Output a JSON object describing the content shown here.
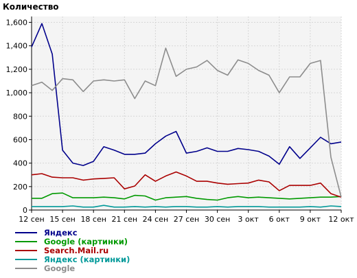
{
  "chart_data": {
    "type": "line",
    "title": "Количество",
    "xlabel": "",
    "ylabel": "",
    "ylim": [
      0,
      1650
    ],
    "yticks": [
      0,
      200,
      400,
      600,
      800,
      1000,
      1200,
      1400,
      1600
    ],
    "ytick_labels": [
      "0",
      "200",
      "400",
      "600",
      "800",
      "1,000",
      "1,200",
      "1,400",
      "1,600"
    ],
    "x": [
      "12 сен",
      "13 сен",
      "14 сен",
      "15 сен",
      "16 сен",
      "17 сен",
      "18 сен",
      "19 сен",
      "20 сен",
      "21 сен",
      "22 сен",
      "23 сен",
      "24 сен",
      "25 сен",
      "26 сен",
      "27 сен",
      "28 сен",
      "29 сен",
      "30 сен",
      "1 окт",
      "2 окт",
      "3 окт",
      "4 окт",
      "5 окт",
      "6 окт",
      "7 окт",
      "8 окт",
      "9 окт",
      "10 окт",
      "11 окт",
      "12 окт"
    ],
    "xtick_labels": [
      "12 сен",
      "15 сен",
      "18 сен",
      "21 сен",
      "24 сен",
      "27 сен",
      "30 сен",
      "3 окт",
      "6 окт",
      "9 окт",
      "12 окт"
    ],
    "grid": true,
    "legend_position": "bottom-left",
    "series": [
      {
        "name": "Яндекс",
        "color": "#00008b",
        "values": [
          1390,
          1590,
          1330,
          510,
          400,
          380,
          415,
          540,
          510,
          475,
          475,
          485,
          565,
          630,
          670,
          485,
          500,
          530,
          500,
          500,
          525,
          515,
          500,
          460,
          390,
          540,
          440,
          530,
          620,
          565,
          580
        ]
      },
      {
        "name": "Google (картинки)",
        "color": "#009900",
        "values": [
          100,
          100,
          140,
          145,
          105,
          105,
          105,
          110,
          105,
          95,
          125,
          120,
          85,
          105,
          110,
          115,
          100,
          90,
          85,
          105,
          115,
          105,
          110,
          105,
          100,
          95,
          100,
          105,
          110,
          110,
          115
        ]
      },
      {
        "name": "Search.Mail.ru",
        "color": "#aa0000",
        "values": [
          300,
          310,
          280,
          275,
          275,
          255,
          265,
          270,
          275,
          180,
          205,
          300,
          245,
          290,
          325,
          290,
          245,
          245,
          230,
          220,
          225,
          230,
          255,
          240,
          165,
          210,
          210,
          210,
          230,
          140,
          110
        ]
      },
      {
        "name": "Яндекс (картинки)",
        "color": "#009999",
        "values": [
          30,
          30,
          30,
          30,
          35,
          25,
          25,
          40,
          25,
          25,
          30,
          25,
          30,
          25,
          30,
          30,
          25,
          25,
          30,
          25,
          30,
          30,
          30,
          25,
          25,
          25,
          25,
          30,
          25,
          35,
          30
        ]
      },
      {
        "name": "Google",
        "color": "#8c8c8c",
        "values": [
          1060,
          1090,
          1020,
          1120,
          1110,
          1010,
          1100,
          1110,
          1100,
          1110,
          950,
          1100,
          1060,
          1380,
          1140,
          1200,
          1220,
          1275,
          1190,
          1150,
          1280,
          1250,
          1190,
          1150,
          1000,
          1135,
          1135,
          1250,
          1275,
          450,
          110
        ]
      }
    ]
  }
}
